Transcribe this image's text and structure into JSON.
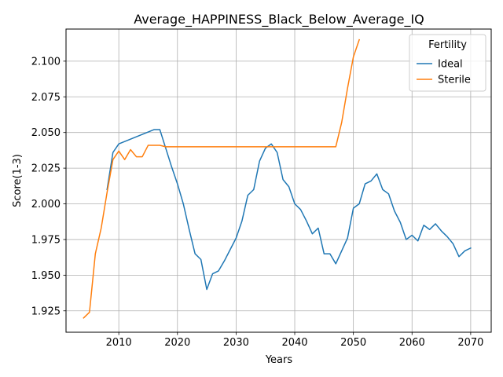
{
  "chart_data": {
    "type": "line",
    "title": "Average_HAPPINESS_Black_Below_Average_IQ",
    "xlabel": "Years",
    "ylabel": "Score(1-3)",
    "xlim": [
      2001,
      2073.5
    ],
    "ylim": [
      1.91,
      2.1225
    ],
    "xticks": [
      2010,
      2020,
      2030,
      2040,
      2050,
      2060,
      2070
    ],
    "yticks": [
      1.925,
      1.95,
      1.975,
      2.0,
      2.025,
      2.05,
      2.075,
      2.1
    ],
    "ytick_labels": [
      "1.925",
      "1.950",
      "1.975",
      "2.000",
      "2.025",
      "2.050",
      "2.075",
      "2.100"
    ],
    "grid": true,
    "legend": {
      "title": "Fertility",
      "placement": "top-right"
    },
    "series": [
      {
        "name": "Ideal",
        "color": "#1f77b4",
        "x": [
          2008,
          2009,
          2010,
          2016,
          2017,
          2018,
          2019,
          2020,
          2021,
          2022,
          2023,
          2024,
          2025,
          2026,
          2027,
          2028,
          2029,
          2030,
          2031,
          2032,
          2033,
          2034,
          2035,
          2036,
          2037,
          2038,
          2039,
          2040,
          2041,
          2042,
          2043,
          2044,
          2045,
          2046,
          2047,
          2048,
          2049,
          2050,
          2051,
          2052,
          2053,
          2054,
          2055,
          2056,
          2057,
          2058,
          2059,
          2060,
          2061,
          2062,
          2063,
          2064,
          2065,
          2066,
          2067,
          2068,
          2069,
          2070
        ],
        "y": [
          2.01,
          2.036,
          2.042,
          2.052,
          2.052,
          2.039,
          2.026,
          2.014,
          2.0,
          1.982,
          1.965,
          1.961,
          1.94,
          1.951,
          1.953,
          1.96,
          1.968,
          1.976,
          1.988,
          2.006,
          2.01,
          2.03,
          2.039,
          2.042,
          2.036,
          2.017,
          2.012,
          2.0,
          1.996,
          1.988,
          1.979,
          1.983,
          1.965,
          1.965,
          1.958,
          1.967,
          1.976,
          1.997,
          2.0,
          2.014,
          2.016,
          2.021,
          2.01,
          2.007,
          1.995,
          1.987,
          1.975,
          1.978,
          1.974,
          1.985,
          1.982,
          1.986,
          1.981,
          1.977,
          1.972,
          1.963,
          1.967,
          1.969
        ]
      },
      {
        "name": "Sterile",
        "color": "#ff7f0e",
        "x": [
          2004,
          2005,
          2006,
          2007,
          2008,
          2009,
          2010,
          2011,
          2012,
          2013,
          2014,
          2015,
          2016,
          2017,
          2018,
          2019,
          2020,
          2025,
          2030,
          2035,
          2040,
          2045,
          2046,
          2047,
          2048,
          2049,
          2050,
          2051
        ],
        "y": [
          1.92,
          1.924,
          1.965,
          1.983,
          2.008,
          2.031,
          2.037,
          2.031,
          2.038,
          2.033,
          2.033,
          2.041,
          2.041,
          2.041,
          2.04,
          2.04,
          2.04,
          2.04,
          2.04,
          2.04,
          2.04,
          2.04,
          2.04,
          2.04,
          2.057,
          2.081,
          2.103,
          2.115
        ]
      }
    ]
  }
}
